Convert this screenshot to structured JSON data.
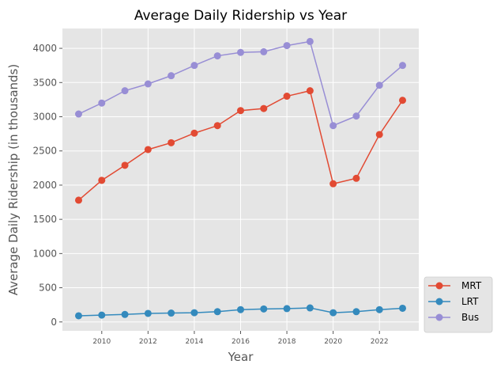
{
  "chart_data": {
    "type": "line",
    "title": "Average Daily Ridership vs Year",
    "xlabel": "Year",
    "ylabel": "Average Daily Ridership (in thousands)",
    "x": [
      2009,
      2010,
      2011,
      2012,
      2013,
      2014,
      2015,
      2016,
      2017,
      2018,
      2019,
      2020,
      2021,
      2022,
      2023
    ],
    "xlim": [
      2008.3,
      2023.7
    ],
    "ylim": [
      -130,
      4290
    ],
    "x_ticks": [
      2010,
      2012,
      2014,
      2016,
      2018,
      2020,
      2022
    ],
    "y_ticks": [
      0,
      500,
      1000,
      1500,
      2000,
      2500,
      3000,
      3500,
      4000
    ],
    "grid": true,
    "legend_position": "lower-right-outside",
    "series": [
      {
        "name": "MRT",
        "color": "#E24A33",
        "values": [
          1780,
          2070,
          2290,
          2520,
          2620,
          2760,
          2870,
          3090,
          3120,
          3300,
          3380,
          2020,
          2100,
          2740,
          3240
        ]
      },
      {
        "name": "LRT",
        "color": "#348ABD",
        "values": [
          90,
          100,
          110,
          125,
          130,
          135,
          150,
          180,
          190,
          195,
          205,
          135,
          150,
          180,
          200
        ]
      },
      {
        "name": "Bus",
        "color": "#988ED5",
        "values": [
          3040,
          3200,
          3380,
          3480,
          3600,
          3750,
          3890,
          3940,
          3950,
          4040,
          4100,
          2870,
          3010,
          3460,
          3750
        ]
      }
    ]
  }
}
